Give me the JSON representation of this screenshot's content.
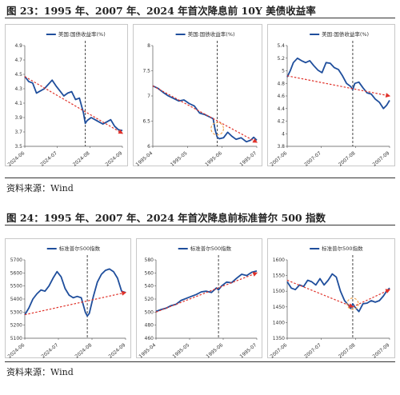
{
  "figure_1": {
    "title": "图 23：1995 年、2007 年、2024 年首次降息前 10Y 美债收益率",
    "source": "资料来源：Wind"
  },
  "figure_2": {
    "title": "图 24：1995 年、2007 年、2024 年首次降息前标准普尔 500 指数",
    "source": "资料来源：Wind"
  },
  "colors": {
    "series": "#1f4e9c",
    "trend": "#e0322a",
    "highlight": "#f0a24a",
    "cut_line": "#333333"
  },
  "chart_data": [
    {
      "type": "line",
      "legend": "美国:国债收益率(%)",
      "x_ticks": [
        "2024-06",
        "2024-07",
        "2024-08",
        "2024-09"
      ],
      "x_range": [
        0,
        100
      ],
      "y_ticks": [
        "4.9",
        "4.7",
        "4.5",
        "4.3",
        "4.1",
        "3.9",
        "3.7",
        "3.5"
      ],
      "ylim": [
        3.5,
        4.9
      ],
      "cut_line_x": 62,
      "highlight": null,
      "series_x": [
        0,
        4,
        8,
        12,
        16,
        20,
        24,
        28,
        32,
        36,
        40,
        44,
        48,
        52,
        56,
        60,
        62,
        64,
        68,
        72,
        76,
        80,
        84,
        88,
        92,
        96,
        100
      ],
      "series_y": [
        4.47,
        4.4,
        4.38,
        4.24,
        4.27,
        4.3,
        4.36,
        4.42,
        4.34,
        4.27,
        4.2,
        4.24,
        4.26,
        4.15,
        4.17,
        3.97,
        3.82,
        3.86,
        3.9,
        3.87,
        3.84,
        3.81,
        3.84,
        3.87,
        3.78,
        3.73,
        3.72
      ],
      "trend": {
        "from": [
          0,
          4.47
        ],
        "to": [
          100,
          3.68
        ]
      }
    },
    {
      "type": "line",
      "legend": "美国:国债收益率(%)",
      "x_ticks": [
        "1995-04",
        "1995-05",
        "1995-06",
        "1995-07"
      ],
      "x_range": [
        0,
        100
      ],
      "y_ticks": [
        "8",
        "7.5",
        "7",
        "6.5",
        "6"
      ],
      "ylim": [
        6,
        8
      ],
      "cut_line_x": 62,
      "highlight": {
        "cx": 62,
        "cy": 6.35,
        "r": 0.6
      },
      "series_x": [
        0,
        5,
        10,
        15,
        20,
        25,
        30,
        35,
        40,
        45,
        50,
        55,
        58,
        60,
        62,
        64,
        68,
        72,
        76,
        80,
        85,
        90,
        94,
        97,
        100
      ],
      "series_y": [
        7.2,
        7.15,
        7.07,
        7.0,
        6.95,
        6.9,
        6.92,
        6.85,
        6.8,
        6.66,
        6.63,
        6.58,
        6.55,
        6.32,
        6.18,
        6.15,
        6.17,
        6.28,
        6.2,
        6.14,
        6.17,
        6.09,
        6.12,
        6.18,
        6.12
      ],
      "trend": {
        "from": [
          0,
          7.2
        ],
        "to": [
          100,
          6.08
        ]
      }
    },
    {
      "type": "line",
      "legend": "美国:国债收益率(%)",
      "x_ticks": [
        "2007-06",
        "2007-07",
        "2007-08",
        "2007-09"
      ],
      "x_range": [
        0,
        100
      ],
      "y_ticks": [
        "5.4",
        "5.2",
        "5",
        "4.8",
        "4.6",
        "4.4",
        "4.2",
        "4",
        "3.8"
      ],
      "ylim": [
        3.8,
        5.4
      ],
      "cut_line_x": 64,
      "highlight": null,
      "series_x": [
        0,
        3,
        6,
        10,
        14,
        18,
        22,
        26,
        30,
        34,
        38,
        42,
        46,
        50,
        54,
        58,
        62,
        64,
        66,
        70,
        74,
        78,
        82,
        86,
        90,
        94,
        97,
        100
      ],
      "series_y": [
        4.9,
        5.0,
        5.13,
        5.2,
        5.16,
        5.13,
        5.16,
        5.08,
        5.01,
        4.97,
        5.13,
        5.12,
        5.05,
        5.02,
        4.92,
        4.8,
        4.75,
        4.7,
        4.8,
        4.82,
        4.73,
        4.65,
        4.63,
        4.55,
        4.5,
        4.4,
        4.45,
        4.53
      ],
      "trend": {
        "from": [
          0,
          4.92
        ],
        "to": [
          100,
          4.6
        ]
      }
    },
    {
      "type": "line",
      "legend": "标准普尔500指数",
      "x_ticks": [
        "2024-06",
        "2024-07",
        "2024-08",
        "2024-09"
      ],
      "x_range": [
        0,
        100
      ],
      "y_ticks": [
        "5700",
        "5600",
        "5500",
        "5400",
        "5300",
        "5200",
        "5100"
      ],
      "ylim": [
        5100,
        5700
      ],
      "cut_line_x": 62,
      "highlight": null,
      "series_x": [
        0,
        4,
        8,
        12,
        16,
        20,
        24,
        28,
        32,
        36,
        40,
        44,
        48,
        52,
        56,
        60,
        62,
        64,
        68,
        72,
        76,
        80,
        84,
        88,
        92,
        96,
        100
      ],
      "series_y": [
        5280,
        5330,
        5400,
        5440,
        5470,
        5460,
        5500,
        5560,
        5610,
        5570,
        5480,
        5430,
        5410,
        5420,
        5410,
        5300,
        5270,
        5290,
        5420,
        5530,
        5590,
        5620,
        5630,
        5610,
        5560,
        5460,
        5450
      ],
      "trend": {
        "from": [
          0,
          5280
        ],
        "to": [
          100,
          5450
        ]
      }
    },
    {
      "type": "line",
      "legend": "标准普尔500指数",
      "x_ticks": [
        "1995-04",
        "1995-05",
        "1995-06",
        "1995-07"
      ],
      "x_range": [
        0,
        100
      ],
      "y_ticks": [
        "580",
        "560",
        "540",
        "520",
        "500",
        "480",
        "460"
      ],
      "ylim": [
        460,
        580
      ],
      "cut_line_x": 62,
      "highlight": null,
      "series_x": [
        0,
        5,
        10,
        15,
        20,
        25,
        30,
        35,
        40,
        45,
        50,
        55,
        60,
        62,
        65,
        70,
        75,
        80,
        85,
        90,
        95,
        100
      ],
      "series_y": [
        501,
        504,
        506,
        510,
        512,
        518,
        521,
        524,
        527,
        531,
        532,
        530,
        537,
        534,
        540,
        546,
        545,
        552,
        558,
        556,
        561,
        563
      ],
      "trend": {
        "from": [
          0,
          500
        ],
        "to": [
          100,
          560
        ]
      }
    },
    {
      "type": "line",
      "legend": "标准普尔500指数",
      "x_ticks": [
        "2007-06",
        "2007-07",
        "2007-08",
        "2007-09"
      ],
      "x_range": [
        0,
        100
      ],
      "y_ticks": [
        "1600",
        "1550",
        "1500",
        "1450",
        "1400",
        "1350"
      ],
      "ylim": [
        1350,
        1600
      ],
      "cut_line_x": 64,
      "highlight": {
        "cx": 64,
        "cy": 1460,
        "r": 0.55
      },
      "series_x": [
        0,
        4,
        8,
        12,
        16,
        20,
        24,
        28,
        32,
        36,
        40,
        44,
        48,
        52,
        56,
        60,
        62,
        64,
        66,
        70,
        74,
        78,
        82,
        86,
        90,
        94,
        97,
        100
      ],
      "series_y": [
        1530,
        1510,
        1505,
        1520,
        1515,
        1535,
        1530,
        1520,
        1540,
        1520,
        1535,
        1555,
        1545,
        1500,
        1470,
        1455,
        1445,
        1460,
        1450,
        1435,
        1460,
        1462,
        1470,
        1465,
        1470,
        1485,
        1500,
        1510
      ],
      "trend": {
        "from": [
          0,
          1535
        ],
        "to": [
          64,
          1450
        ],
        "to2": [
          100,
          1505
        ]
      }
    }
  ]
}
